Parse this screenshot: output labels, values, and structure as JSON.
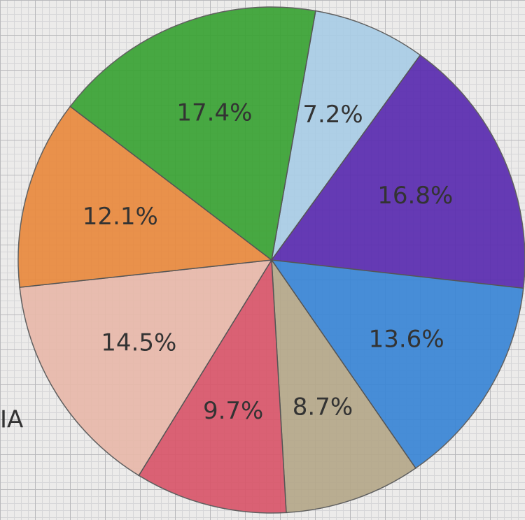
{
  "chart_data": {
    "type": "pie",
    "values": [
      7.2,
      16.8,
      13.6,
      8.7,
      9.7,
      14.5,
      12.1,
      17.4
    ],
    "value_labels": [
      "7.2%",
      "16.8%",
      "13.6%",
      "8.7%",
      "9.7%",
      "14.5%",
      "12.1%",
      "17.4%"
    ],
    "colors": [
      "#a9cde6",
      "#5a2cb0",
      "#3a86d6",
      "#b5a88a",
      "#d9566a",
      "#e8b9aa",
      "#e98a3e",
      "#3aa334"
    ],
    "annotation": "IA"
  }
}
